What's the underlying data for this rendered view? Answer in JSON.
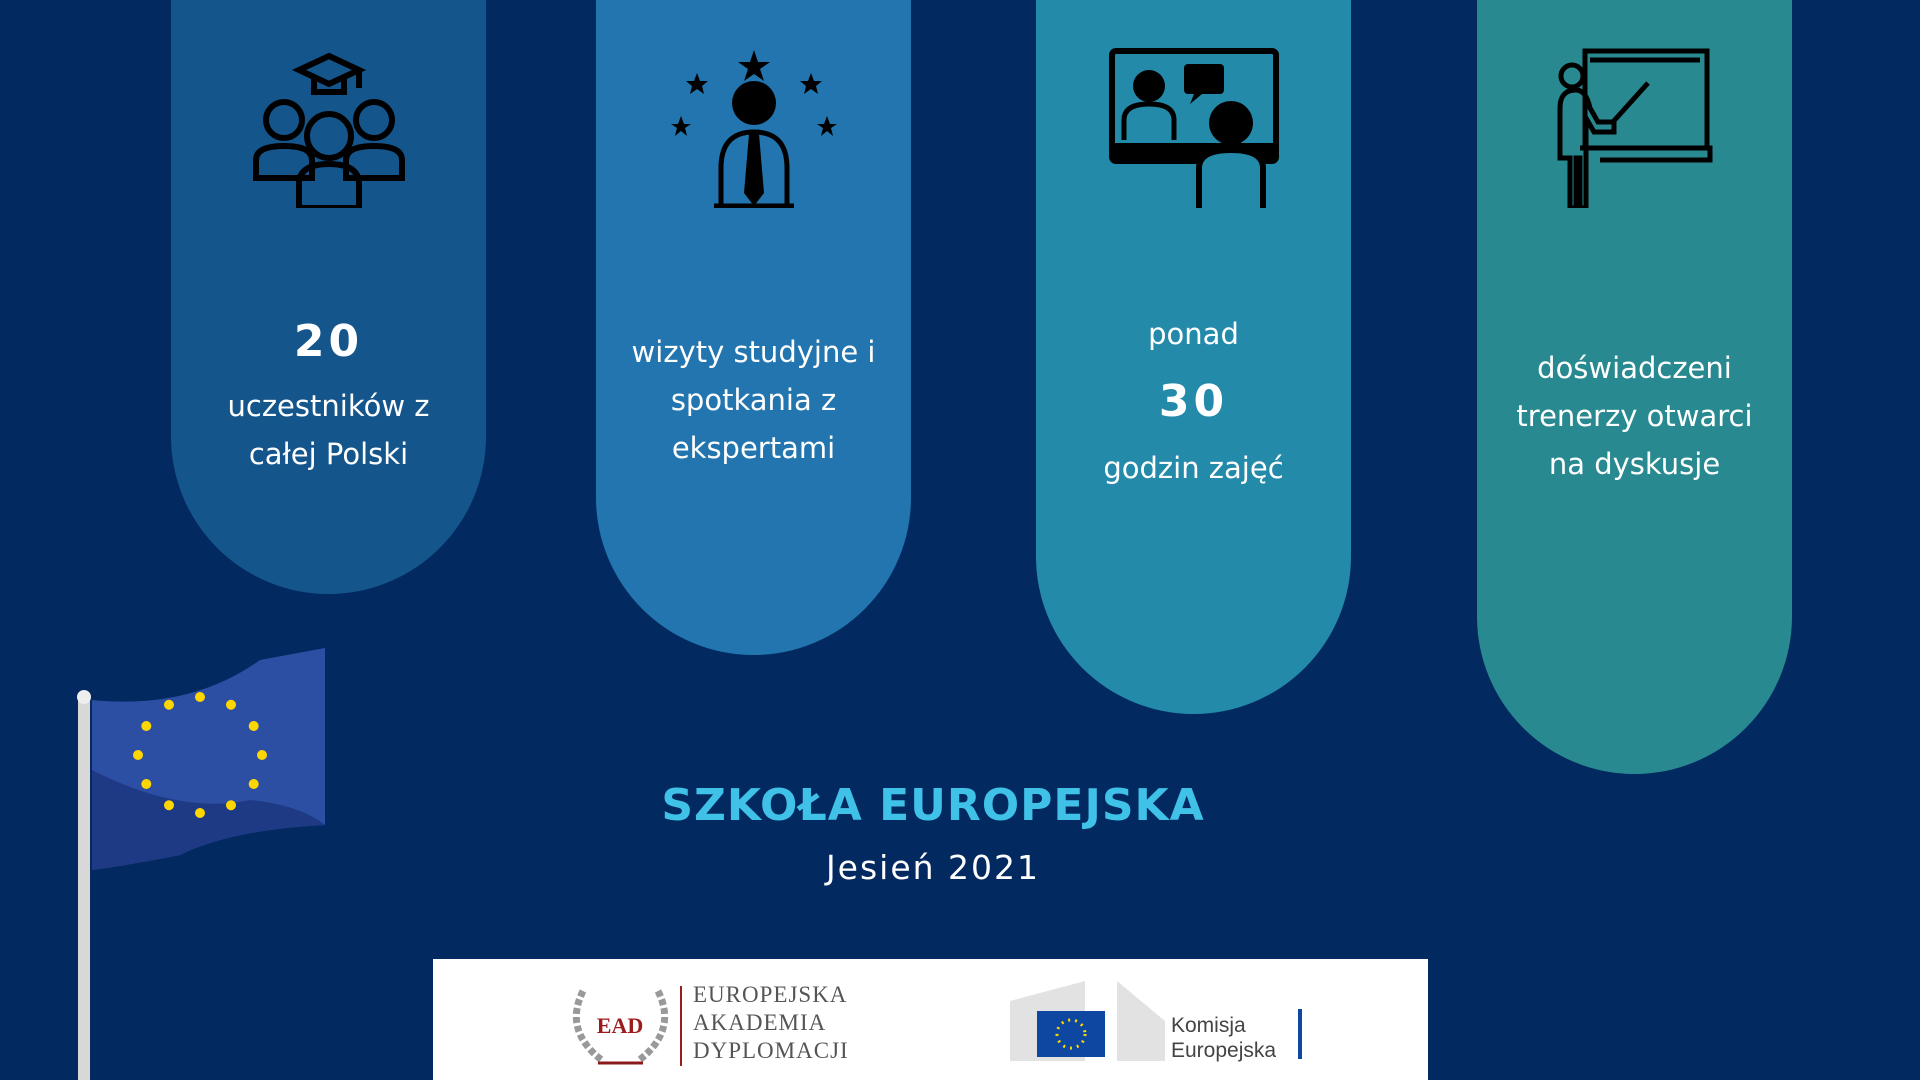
{
  "columns": [
    {
      "icon": "graduates-group-icon",
      "color": "#14558c",
      "lines": [
        "uczestników z",
        "całej Polski"
      ],
      "number": "20"
    },
    {
      "icon": "expert-stars-icon",
      "color": "#2275ae",
      "lines": [
        "wizyty studyjne i",
        "spotkania z",
        "ekspertami"
      ]
    },
    {
      "icon": "video-meeting-icon",
      "color": "#238aaa",
      "pre": "ponad",
      "number": "30",
      "lines": [
        "godzin zajęć"
      ]
    },
    {
      "icon": "trainer-whiteboard-icon",
      "color": "#288a90",
      "lines": [
        "doświadczeni",
        "trenerzy otwarci",
        "na dyskusje"
      ]
    }
  ],
  "title": "SZKOŁA EUROPEJSKA",
  "subtitle": "Jesień 2021",
  "logos": {
    "ead_mark": "EAD",
    "ead_lines": [
      "EUROPEJSKA",
      "AKADEMIA",
      "DYPLOMACJI"
    ],
    "ec_lines": [
      "Komisja",
      "Europejska"
    ]
  },
  "colors": {
    "background": "#032a60",
    "title": "#3fc1e8"
  }
}
